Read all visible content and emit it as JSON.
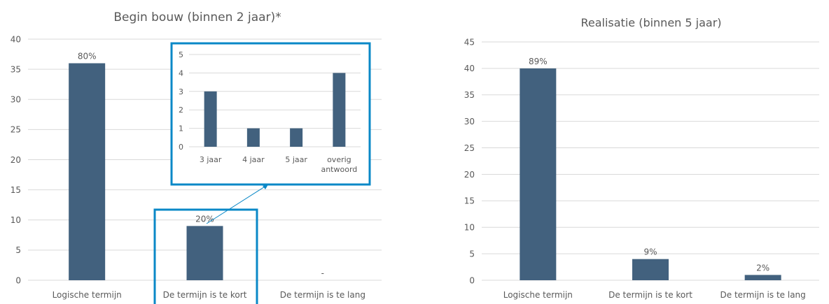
{
  "colors": {
    "bar": "#42617e",
    "grid": "#d9d9d9",
    "text": "#595959",
    "highlight": "#0a88c7"
  },
  "chart_data": [
    {
      "type": "bar",
      "title": "Begin bouw (binnen 2 jaar)*",
      "categories": [
        "Logische termijn",
        "De termijn is te kort",
        "De termijn is te lang"
      ],
      "values": [
        36,
        9,
        0
      ],
      "data_labels": [
        "80%",
        "20%",
        "-"
      ],
      "yticks": [
        "0",
        "5",
        "10",
        "15",
        "20",
        "25",
        "30",
        "35",
        "40"
      ],
      "ylim": [
        0,
        40
      ],
      "grid": true,
      "highlighted_category": "De termijn is te kort"
    },
    {
      "type": "bar",
      "title": "",
      "categories": [
        "3 jaar",
        "4 jaar",
        "5 jaar",
        "overig antwoord"
      ],
      "values": [
        3,
        1,
        1,
        4
      ],
      "yticks": [
        "0",
        "1",
        "2",
        "3",
        "4",
        "5"
      ],
      "ylim": [
        0,
        5
      ],
      "grid": true
    },
    {
      "type": "bar",
      "title": "Realisatie (binnen 5 jaar)",
      "categories": [
        "Logische termijn",
        "De termijn is te kort",
        "De termijn is te lang"
      ],
      "values": [
        40,
        4,
        1
      ],
      "data_labels": [
        "89%",
        "9%",
        "2%"
      ],
      "yticks": [
        "0",
        "5",
        "10",
        "15",
        "20",
        "25",
        "30",
        "35",
        "40",
        "45"
      ],
      "ylim": [
        0,
        45
      ],
      "grid": true
    }
  ]
}
